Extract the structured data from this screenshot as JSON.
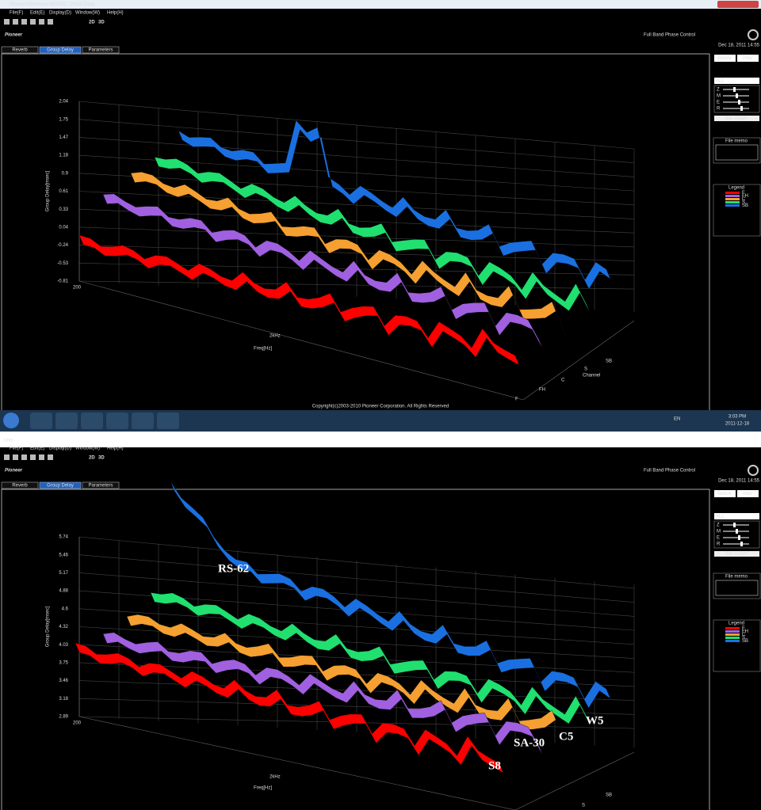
{
  "window": {
    "title": "Pioneer Advanced MCACC - [New Data]"
  },
  "menu": [
    "File(F)",
    "Edit(E)",
    "Display(D)",
    "Window(W)",
    "Help(H)"
  ],
  "toolbar": [
    "2D",
    "3D"
  ],
  "brand": "Pioneer",
  "app_title": "Full Band Phase Control",
  "timestamp": "Dec 18, 2011 14:55",
  "tabs": [
    "Reverb",
    "Group Delay",
    "Parameters"
  ],
  "buttons": [
    "Before",
    "After"
  ],
  "channel_select": "ALL",
  "sliders": [
    "Z",
    "M",
    "E",
    "R"
  ],
  "bar_graph": "Bar Graph",
  "file_memo": "File memo",
  "legend": {
    "title": "Legend",
    "entries": [
      "F",
      "FH",
      "C",
      "S",
      "SB"
    ]
  },
  "top_graph": {
    "yticks": [
      "2.04",
      "1.75",
      "1.47",
      "1.18",
      "0.9",
      "0.61",
      "0.33",
      "0.04",
      "-0.24",
      "-0.53",
      "-0.81"
    ],
    "y_label": "Group Delay[msec]",
    "x_start": "200",
    "x_mid": "2kHz",
    "x_label": "Freq[Hz]",
    "channel_label": "Channel",
    "channels": [
      "SB",
      "S",
      "C",
      "FH",
      "F"
    ]
  },
  "copyright": "Copyright(c)2003-2010 Pioneer Corporation. All Rights Reserved",
  "taskbar": {
    "lang": "EN",
    "time": "3:03 PM",
    "date": "2011-12-18"
  },
  "after_label": "After",
  "bottom_graph": {
    "yticks": [
      "5.74",
      "5.46",
      "5.17",
      "4.88",
      "4.6",
      "4.32",
      "4.03",
      "3.75",
      "3.46",
      "3.18",
      "2.89"
    ],
    "y_label": "Group Delay[msec]",
    "x_start": "200",
    "x_mid": "2kHz",
    "x_label": "Freq[Hz]",
    "channels": [
      "SB",
      "S"
    ],
    "annotations": [
      "RS-62",
      "W5",
      "C5",
      "SA-30",
      "S8"
    ]
  }
}
